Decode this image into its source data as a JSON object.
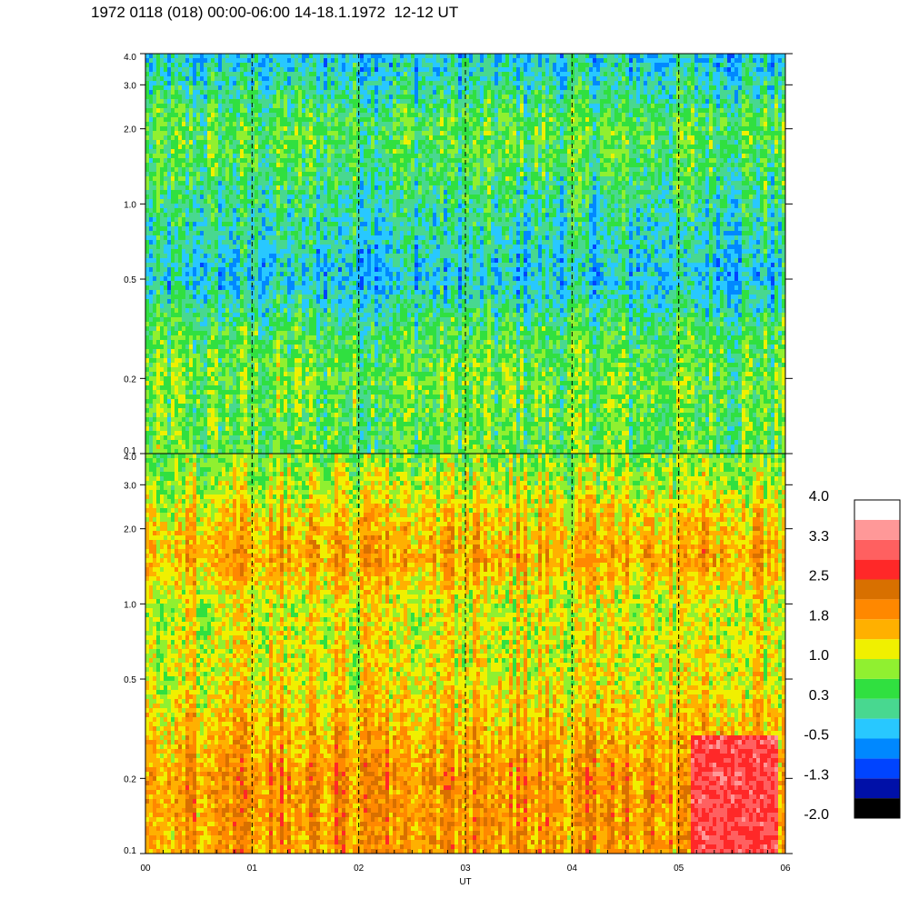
{
  "title": "1972 0118 (018) 00:00-06:00 14-18.1.1972  12-12 UT",
  "chart_data": [
    {
      "type": "heatmap",
      "panel": "top",
      "x": {
        "label": "",
        "ticks": [
          "00",
          "01",
          "02",
          "03",
          "04",
          "05",
          "06"
        ],
        "range": [
          0,
          6
        ]
      },
      "y": {
        "label": "",
        "scale": "log",
        "range": [
          0.1,
          4.0
        ],
        "ticks": [
          "0.1",
          "0.2",
          "0.5",
          "1.0",
          "2.0",
          "3.0",
          "4.0"
        ],
        "tick_values": [
          0.1,
          0.2,
          0.5,
          1.0,
          2.0,
          3.0,
          4.0
        ]
      },
      "value_profile": [
        {
          "y": 0.1,
          "value": 0.5
        },
        {
          "y": 0.2,
          "value": 0.6
        },
        {
          "y": 0.3,
          "value": 0.4
        },
        {
          "y": 0.5,
          "value": -0.3
        },
        {
          "y": 0.8,
          "value": 0.0
        },
        {
          "y": 1.0,
          "value": 0.1
        },
        {
          "y": 1.5,
          "value": 0.4
        },
        {
          "y": 2.0,
          "value": 0.5
        },
        {
          "y": 3.0,
          "value": 0.0
        },
        {
          "y": 4.0,
          "value": -0.3
        }
      ]
    },
    {
      "type": "heatmap",
      "panel": "bottom",
      "x": {
        "label": "UT",
        "ticks": [
          "00",
          "01",
          "02",
          "03",
          "04",
          "05",
          "06"
        ],
        "range": [
          0,
          6
        ]
      },
      "y": {
        "label": "",
        "scale": "log",
        "range": [
          0.1,
          4.0
        ],
        "ticks": [
          "0.1",
          "0.2",
          "0.5",
          "1.0",
          "2.0",
          "3.0",
          "4.0"
        ],
        "tick_values": [
          0.1,
          0.2,
          0.5,
          1.0,
          2.0,
          3.0,
          4.0
        ]
      },
      "value_profile": [
        {
          "y": 0.1,
          "value": 1.8
        },
        {
          "y": 0.2,
          "value": 1.9
        },
        {
          "y": 0.3,
          "value": 1.6
        },
        {
          "y": 0.5,
          "value": 1.2
        },
        {
          "y": 1.0,
          "value": 1.1
        },
        {
          "y": 1.5,
          "value": 1.7
        },
        {
          "y": 2.0,
          "value": 1.5
        },
        {
          "y": 3.0,
          "value": 1.0
        },
        {
          "y": 4.0,
          "value": 0.7
        }
      ],
      "hot_region": {
        "x_range": [
          5.1,
          5.9
        ],
        "y_range": [
          0.1,
          0.3
        ],
        "value": 2.9
      }
    }
  ],
  "time_markers": [
    1,
    2,
    3,
    4,
    5
  ],
  "colorbar": {
    "labels": [
      "4.0",
      "3.3",
      "2.5",
      "1.8",
      "1.0",
      "0.3",
      "-0.5",
      "-1.3",
      "-2.0"
    ],
    "colors": [
      "#000000",
      "#0010a8",
      "#0044ff",
      "#0088ff",
      "#28c8ff",
      "#48d890",
      "#30e040",
      "#90f030",
      "#f0f000",
      "#ffb000",
      "#ff8800",
      "#d87000",
      "#ff2828",
      "#ff6060",
      "#ff9898",
      "#ffffff"
    ],
    "min": -2.0,
    "max": 4.0
  }
}
